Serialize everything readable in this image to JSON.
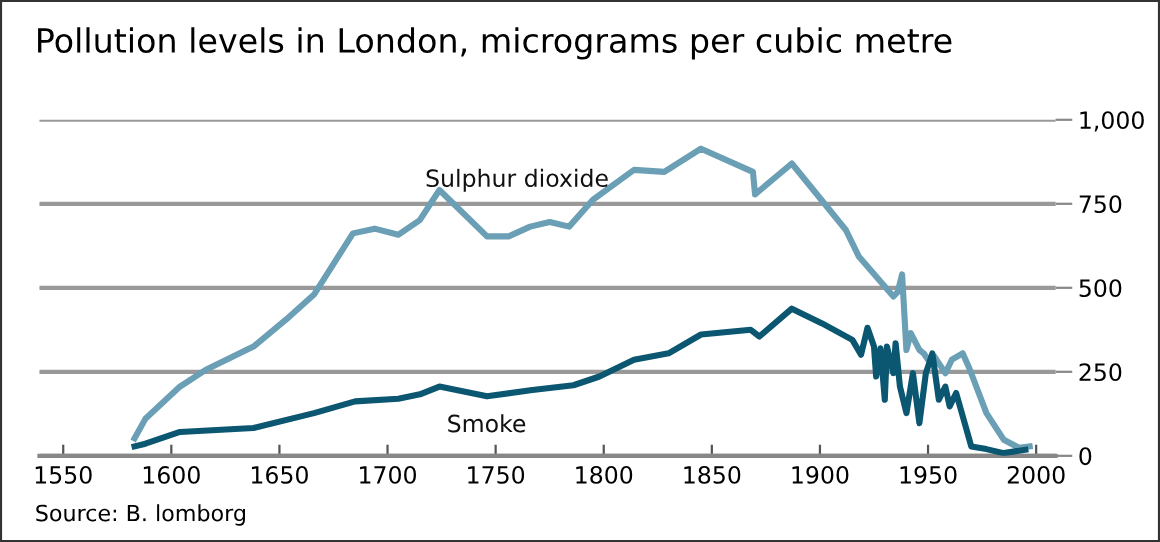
{
  "chart_data": {
    "type": "line",
    "title": "Pollution levels in London, micrograms per cubic metre",
    "annotations": [
      "Source: B. lomborg"
    ],
    "xlim": [
      1539,
      2009
    ],
    "xticks": [
      1550,
      1600,
      1650,
      1700,
      1750,
      1800,
      1850,
      1900,
      1950,
      2000
    ],
    "ylim": [
      0,
      1000
    ],
    "yticks": [
      0,
      250,
      500,
      750,
      {
        "value": 1000,
        "label": "1,000"
      }
    ],
    "grid": "y",
    "legend": false,
    "marker": "none",
    "line_style": "solid",
    "series": [
      {
        "name": "Sulphur dioxide",
        "color": "#6a9fb5",
        "x": [
          1583,
          1588,
          1604,
          1616,
          1638,
          1653,
          1666,
          1684,
          1694,
          1705,
          1715,
          1724,
          1746,
          1756,
          1766,
          1775,
          1784,
          1795,
          1814,
          1828,
          1845,
          1869,
          1870,
          1887,
          1912,
          1918,
          1934,
          1936,
          1938,
          1940,
          1942,
          1946,
          1948,
          1950,
          1953,
          1958,
          1961,
          1966,
          1969,
          1977,
          1985,
          1992,
          1997
        ],
        "values": [
          52,
          110,
          206,
          256,
          325,
          405,
          480,
          662,
          676,
          658,
          702,
          791,
          653,
          653,
          682,
          696,
          682,
          762,
          851,
          845,
          914,
          845,
          778,
          870,
          672,
          593,
          474,
          488,
          540,
          315,
          365,
          315,
          305,
          286,
          295,
          246,
          286,
          305,
          262,
          127,
          48,
          24,
          28
        ]
      },
      {
        "name": "Smoke",
        "color": "#0b5670",
        "x": [
          1583,
          1588,
          1604,
          1638,
          1666,
          1685,
          1705,
          1715,
          1724,
          1746,
          1767,
          1786,
          1798,
          1814,
          1830,
          1845,
          1868,
          1872,
          1887,
          1901,
          1915,
          1919,
          1922,
          1925,
          1926,
          1928,
          1930,
          1931,
          1934,
          1935,
          1937,
          1940,
          1943,
          1946,
          1949,
          1952,
          1955,
          1958,
          1960,
          1963,
          1970,
          1977,
          1985,
          1995
        ],
        "values": [
          28,
          36,
          71,
          83,
          127,
          162,
          170,
          183,
          206,
          177,
          196,
          210,
          236,
          286,
          305,
          361,
          375,
          355,
          438,
          394,
          345,
          301,
          381,
          325,
          236,
          320,
          167,
          325,
          246,
          335,
          206,
          127,
          246,
          97,
          246,
          305,
          167,
          206,
          147,
          187,
          28,
          20,
          8,
          18
        ]
      }
    ]
  }
}
